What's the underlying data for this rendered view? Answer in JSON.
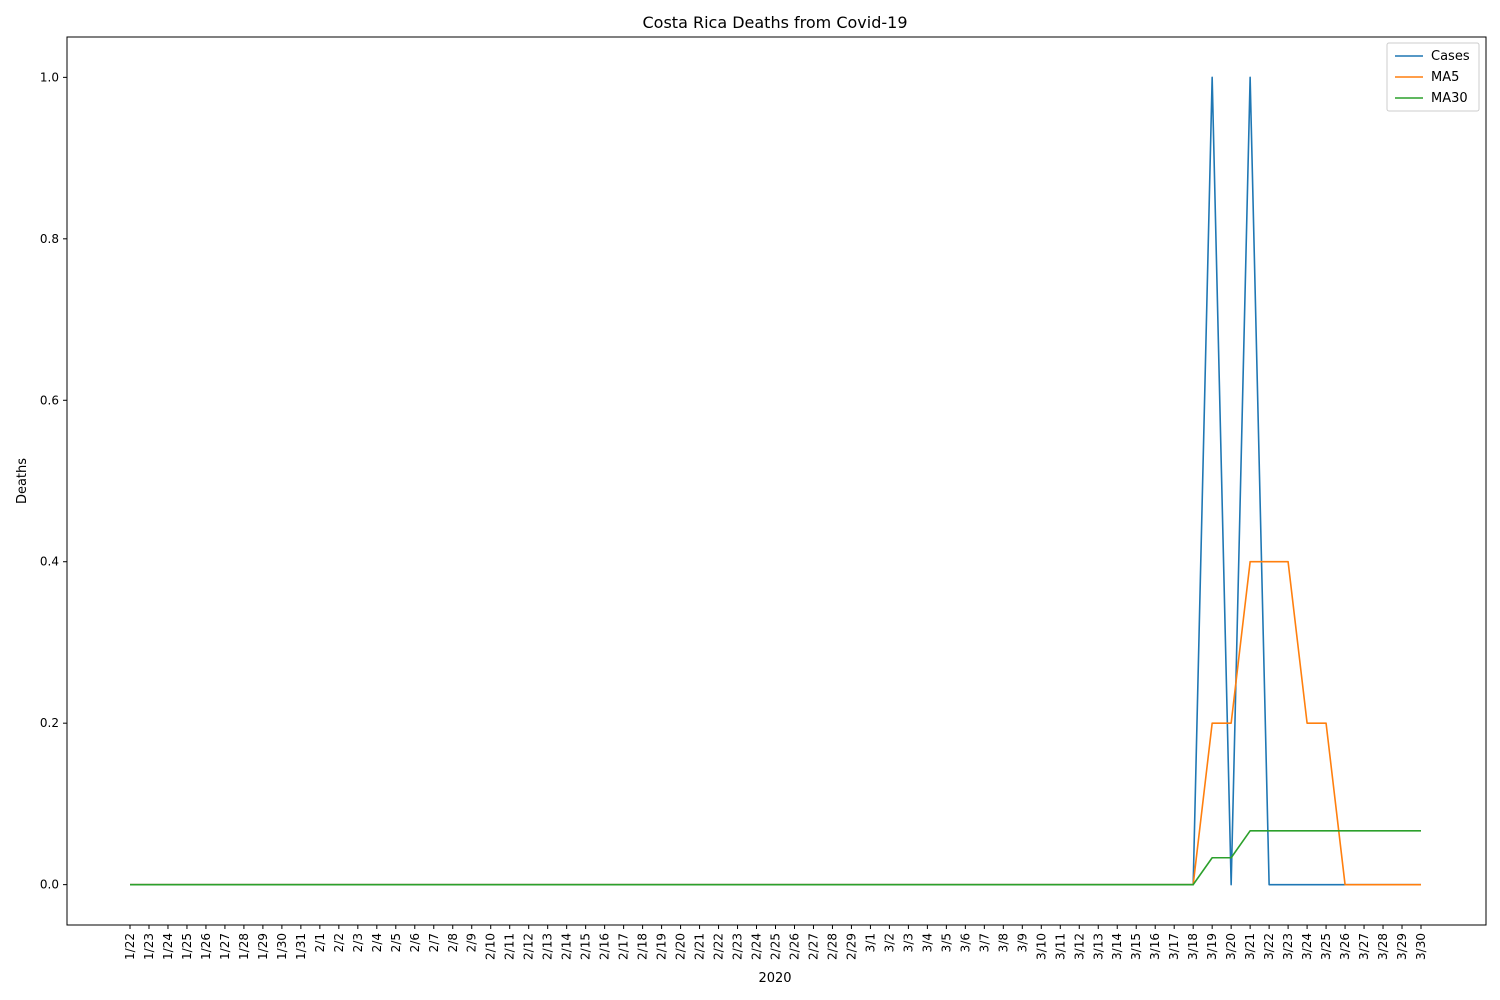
{
  "chart_data": {
    "type": "line",
    "title": "Costa Rica Deaths from Covid-19",
    "xlabel": "2020",
    "ylabel": "Deaths",
    "x": [
      "1/22",
      "1/23",
      "1/24",
      "1/25",
      "1/26",
      "1/27",
      "1/28",
      "1/29",
      "1/30",
      "1/31",
      "2/1",
      "2/2",
      "2/3",
      "2/4",
      "2/5",
      "2/6",
      "2/7",
      "2/8",
      "2/9",
      "2/10",
      "2/11",
      "2/12",
      "2/13",
      "2/14",
      "2/15",
      "2/16",
      "2/17",
      "2/18",
      "2/19",
      "2/20",
      "2/21",
      "2/22",
      "2/23",
      "2/24",
      "2/25",
      "2/26",
      "2/27",
      "2/28",
      "2/29",
      "3/1",
      "3/2",
      "3/3",
      "3/4",
      "3/5",
      "3/6",
      "3/7",
      "3/8",
      "3/9",
      "3/10",
      "3/11",
      "3/12",
      "3/13",
      "3/14",
      "3/15",
      "3/16",
      "3/17",
      "3/18",
      "3/19",
      "3/20",
      "3/21",
      "3/22",
      "3/23",
      "3/24",
      "3/25",
      "3/26",
      "3/27",
      "3/28",
      "3/29",
      "3/30"
    ],
    "ylim": [
      -0.05,
      1.05
    ],
    "yticks": [
      "0.0",
      "0.2",
      "0.4",
      "0.6",
      "0.8",
      "1.0"
    ],
    "grid": false,
    "legend": "top-right",
    "series": [
      {
        "name": "Cases",
        "color": "#1f77b4",
        "values": [
          0,
          0,
          0,
          0,
          0,
          0,
          0,
          0,
          0,
          0,
          0,
          0,
          0,
          0,
          0,
          0,
          0,
          0,
          0,
          0,
          0,
          0,
          0,
          0,
          0,
          0,
          0,
          0,
          0,
          0,
          0,
          0,
          0,
          0,
          0,
          0,
          0,
          0,
          0,
          0,
          0,
          0,
          0,
          0,
          0,
          0,
          0,
          0,
          0,
          0,
          0,
          0,
          0,
          0,
          0,
          0,
          0,
          1,
          0,
          1,
          0,
          0,
          0,
          0,
          0,
          0,
          0,
          0,
          0
        ]
      },
      {
        "name": "MA5",
        "color": "#ff7f0e",
        "values": [
          0,
          0,
          0,
          0,
          0,
          0,
          0,
          0,
          0,
          0,
          0,
          0,
          0,
          0,
          0,
          0,
          0,
          0,
          0,
          0,
          0,
          0,
          0,
          0,
          0,
          0,
          0,
          0,
          0,
          0,
          0,
          0,
          0,
          0,
          0,
          0,
          0,
          0,
          0,
          0,
          0,
          0,
          0,
          0,
          0,
          0,
          0,
          0,
          0,
          0,
          0,
          0,
          0,
          0,
          0,
          0,
          0,
          0.2,
          0.2,
          0.4,
          0.4,
          0.4,
          0.2,
          0.2,
          0,
          0,
          0,
          0,
          0
        ]
      },
      {
        "name": "MA30",
        "color": "#2ca02c",
        "values": [
          0,
          0,
          0,
          0,
          0,
          0,
          0,
          0,
          0,
          0,
          0,
          0,
          0,
          0,
          0,
          0,
          0,
          0,
          0,
          0,
          0,
          0,
          0,
          0,
          0,
          0,
          0,
          0,
          0,
          0,
          0,
          0,
          0,
          0,
          0,
          0,
          0,
          0,
          0,
          0,
          0,
          0,
          0,
          0,
          0,
          0,
          0,
          0,
          0,
          0,
          0,
          0,
          0,
          0,
          0,
          0,
          0,
          0.0333,
          0.0333,
          0.0667,
          0.0667,
          0.0667,
          0.0667,
          0.0667,
          0.0667,
          0.0667,
          0.0667,
          0.0667,
          0.0667
        ]
      }
    ]
  }
}
